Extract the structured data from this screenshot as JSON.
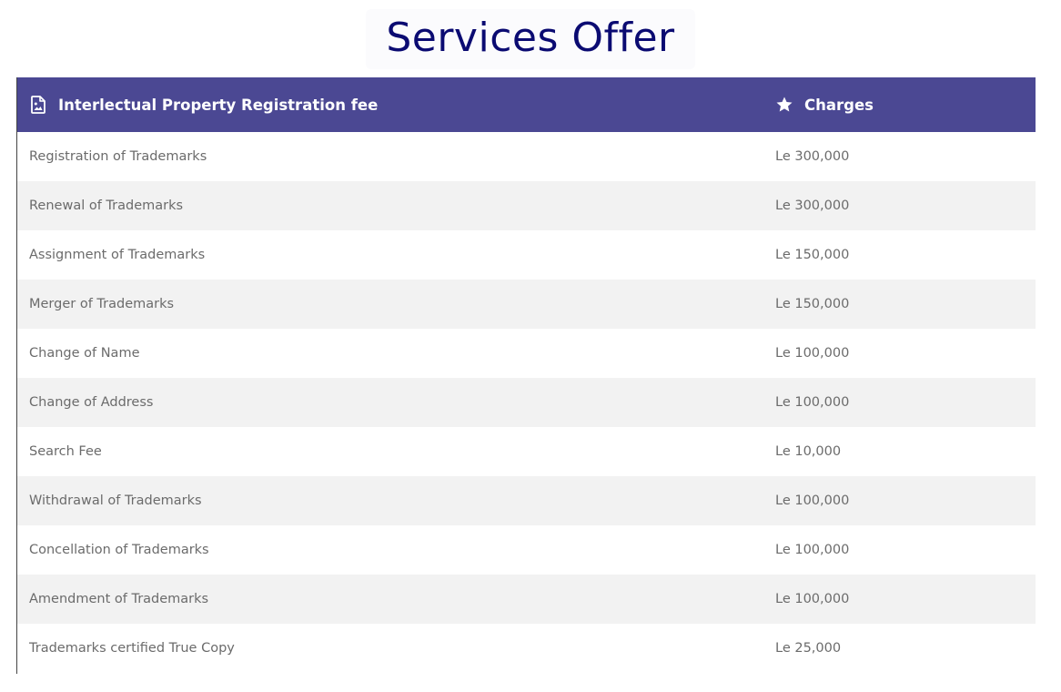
{
  "page": {
    "title": "Services Offer"
  },
  "table": {
    "headers": {
      "service": "Interlectual Property Registration fee",
      "charges": "Charges"
    },
    "rows": [
      {
        "service": "Registration of Trademarks",
        "charge": "Le 300,000"
      },
      {
        "service": "Renewal of Trademarks",
        "charge": "Le 300,000"
      },
      {
        "service": "Assignment of Trademarks",
        "charge": "Le 150,000"
      },
      {
        "service": "Merger of Trademarks",
        "charge": "Le 150,000"
      },
      {
        "service": "Change of Name",
        "charge": "Le 100,000"
      },
      {
        "service": "Change of Address",
        "charge": "Le 100,000"
      },
      {
        "service": "Search Fee",
        "charge": "Le 10,000"
      },
      {
        "service": "Withdrawal of Trademarks",
        "charge": "Le 100,000"
      },
      {
        "service": "Concellation of Trademarks",
        "charge": "Le 100,000"
      },
      {
        "service": "Amendment of Trademarks",
        "charge": "Le 100,000"
      },
      {
        "service": "Trademarks certified True Copy",
        "charge": "Le 25,000"
      }
    ]
  },
  "icons": {
    "service_header": "file-image-icon",
    "charges_header": "star-icon"
  },
  "colors": {
    "title": "#0b0b72",
    "header_bg": "#4b4893",
    "row_alt_bg": "#f2f2f2",
    "cell_text": "#6b6b6b"
  }
}
